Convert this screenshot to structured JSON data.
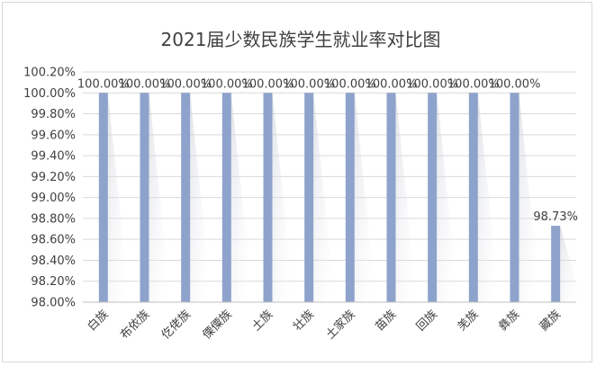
{
  "chart_data": {
    "type": "bar",
    "title": "2021届少数民族学生就业率对比图",
    "xlabel": "",
    "ylabel": "",
    "categories": [
      "白族",
      "布依族",
      "仡佬族",
      "傈僳族",
      "土族",
      "壮族",
      "土家族",
      "苗族",
      "回族",
      "羌族",
      "彝族",
      "藏族"
    ],
    "values": [
      100.0,
      100.0,
      100.0,
      100.0,
      100.0,
      100.0,
      100.0,
      100.0,
      100.0,
      100.0,
      100.0,
      98.73
    ],
    "data_labels": [
      "100.00%",
      "100.00%",
      "100.00%",
      "100.00%",
      "100.00%",
      "100.00%",
      "100.00%",
      "100.00%",
      "100.00%",
      "100.00%",
      "100.00%",
      "98.73%"
    ],
    "ylim": [
      98.0,
      100.2
    ],
    "y_ticks": [
      98.0,
      98.2,
      98.4,
      98.6,
      98.8,
      99.0,
      99.2,
      99.4,
      99.6,
      99.8,
      100.0,
      100.2
    ],
    "y_tick_labels": [
      "98.00%",
      "98.20%",
      "98.40%",
      "98.60%",
      "98.80%",
      "99.00%",
      "99.20%",
      "99.40%",
      "99.60%",
      "99.80%",
      "100.00%",
      "100.20%"
    ],
    "grid": true,
    "legend": "none",
    "colors": {
      "bar": "#8ea3cb",
      "gridline": "#d9d9d9",
      "axis": "#bfbfbf",
      "text": "#404040"
    }
  }
}
